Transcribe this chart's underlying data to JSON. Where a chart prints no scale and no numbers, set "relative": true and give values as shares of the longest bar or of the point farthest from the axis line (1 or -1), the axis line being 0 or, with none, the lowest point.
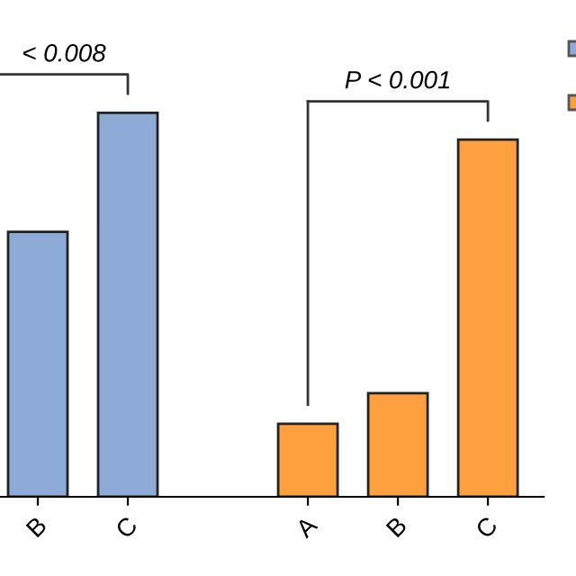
{
  "chart_data": {
    "type": "bar",
    "relative": true,
    "categories": [
      "B",
      "C",
      null,
      "A",
      "B",
      "C"
    ],
    "series": [
      {
        "color": "#8eaad6",
        "values": [
          0.69,
          1,
          null,
          null,
          null,
          null
        ]
      },
      {
        "color": "#ffa040",
        "values": [
          null,
          null,
          null,
          0.19,
          0.27,
          0.93
        ]
      }
    ],
    "annotations": [
      "< 0.008",
      "P < 0.001"
    ],
    "legend": false
  }
}
